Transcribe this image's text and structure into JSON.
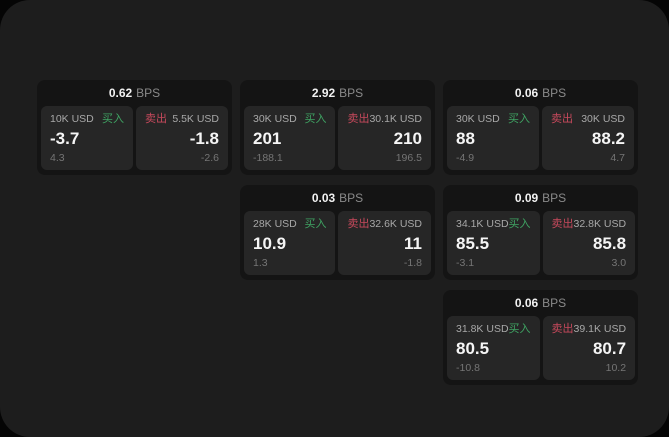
{
  "labels": {
    "bps_unit": "BPS",
    "buy": "买入",
    "sell": "卖出"
  },
  "colors": {
    "buy": "#3fa463",
    "sell": "#c7495c",
    "window_bg": "#1d1d1d",
    "card_bg": "#141414",
    "panel_bg": "#262626"
  },
  "cards": [
    {
      "bps": "0.62",
      "buy": {
        "amount": "10K USD",
        "price": "-3.7",
        "change": "4.3"
      },
      "sell": {
        "amount": "5.5K USD",
        "price": "-1.8",
        "change": "-2.6"
      }
    },
    {
      "bps": "2.92",
      "buy": {
        "amount": "30K USD",
        "price": "201",
        "change": "-188.1"
      },
      "sell": {
        "amount": "30.1K USD",
        "price": "210",
        "change": "196.5"
      }
    },
    {
      "bps": "0.06",
      "buy": {
        "amount": "30K USD",
        "price": "88",
        "change": "-4.9"
      },
      "sell": {
        "amount": "30K USD",
        "price": "88.2",
        "change": "4.7"
      }
    },
    {
      "bps": "0.03",
      "buy": {
        "amount": "28K USD",
        "price": "10.9",
        "change": "1.3"
      },
      "sell": {
        "amount": "32.6K USD",
        "price": "11",
        "change": "-1.8"
      }
    },
    {
      "bps": "0.09",
      "buy": {
        "amount": "34.1K USD",
        "price": "85.5",
        "change": "-3.1"
      },
      "sell": {
        "amount": "32.8K USD",
        "price": "85.8",
        "change": "3.0"
      }
    },
    {
      "bps": "0.06",
      "buy": {
        "amount": "31.8K USD",
        "price": "80.5",
        "change": "-10.8"
      },
      "sell": {
        "amount": "39.1K USD",
        "price": "80.7",
        "change": "10.2"
      }
    }
  ]
}
